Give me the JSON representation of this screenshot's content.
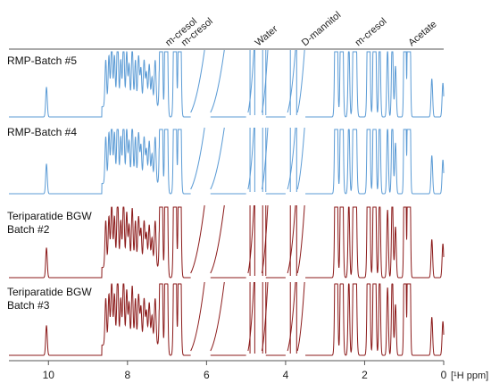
{
  "chart_data": {
    "type": "line",
    "title": "",
    "xlabel": "[¹H ppm]",
    "ylabel": "",
    "xlim": [
      11.0,
      0.0
    ],
    "x_reversed": true,
    "x_ticks": [
      10,
      8,
      6,
      4,
      2,
      0
    ],
    "grid": false,
    "peak_labels": [
      {
        "text": "m-cresol",
        "ppm": 7.05
      },
      {
        "text": "m-cresol",
        "ppm": 6.65
      },
      {
        "text": "Water",
        "ppm": 4.78
      },
      {
        "text": "D-mannitol",
        "ppm": 3.6
      },
      {
        "text": "m-cresol",
        "ppm": 2.25
      },
      {
        "text": "Acetate",
        "ppm": 0.9
      }
    ],
    "series": [
      {
        "name": "RMP-Batch #5",
        "color": "#5b9bd5"
      },
      {
        "name": "RMP-Batch #4",
        "color": "#5b9bd5"
      },
      {
        "name": "Teriparatide BGW Batch #2",
        "label_lines": [
          "Teriparatide BGW",
          "Batch #2"
        ],
        "color": "#8b1a1a"
      },
      {
        "name": "Teriparatide BGW Batch #3",
        "label_lines": [
          "Teriparatide BGW",
          "Batch #3"
        ],
        "color": "#8b1a1a"
      }
    ]
  }
}
